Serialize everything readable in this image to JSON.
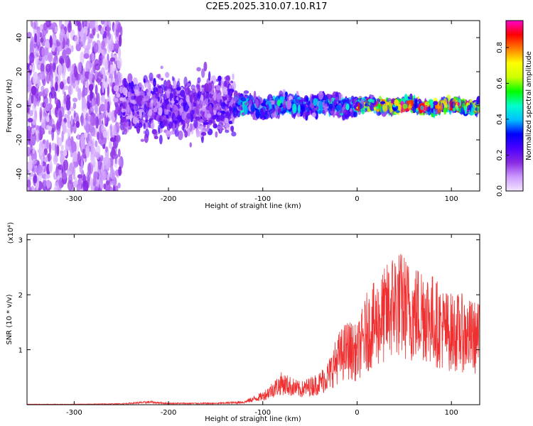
{
  "title": "C2E5.2025.310.07.10.R17",
  "chart_data": [
    {
      "type": "heatmap",
      "xlabel": "Height of straight line (km)",
      "ylabel": "Frequency (Hz)",
      "xlim": [
        -350,
        130
      ],
      "ylim": [
        -50,
        50
      ],
      "xticks": [
        -300,
        -200,
        -100,
        0,
        100
      ],
      "yticks": [
        -40,
        -20,
        0,
        20,
        40
      ],
      "colorbar": {
        "label": "Normalized spectral amplitude",
        "range": [
          0,
          0.95
        ],
        "ticks": [
          "0.0",
          "0.2",
          "0.4",
          "0.6",
          "0.8"
        ],
        "tick_values": [
          0.0,
          0.2,
          0.4,
          0.6,
          0.8
        ],
        "colors": [
          "#f2e6ff",
          "#cc99ff",
          "#8a2be2",
          "#4b00ff",
          "#0000ff",
          "#00bfff",
          "#00ffcc",
          "#00ff00",
          "#ccff00",
          "#ffff00",
          "#ff8000",
          "#ff0000",
          "#ff00cc"
        ]
      },
      "description_regions": [
        {
          "x_range": [
            -350,
            -250
          ],
          "freq_spread": 50,
          "amplitude": 0.12
        },
        {
          "x_range": [
            -250,
            -130
          ],
          "freq_spread": 15,
          "amplitude": 0.18
        },
        {
          "x_range": [
            -130,
            0
          ],
          "freq_spread": 5,
          "amplitude": 0.25
        },
        {
          "x_range": [
            0,
            130
          ],
          "freq_spread": 3,
          "amplitude": 0.45
        }
      ]
    },
    {
      "type": "line",
      "xlabel": "Height of straight line (km)",
      "ylabel": "SNR (10 * v/v)",
      "scale_label": "(x10⁴)",
      "xlim": [
        -350,
        130
      ],
      "ylim": [
        0,
        3.1
      ],
      "xticks": [
        -300,
        -200,
        -100,
        0,
        100
      ],
      "yticks": [
        1,
        2,
        3
      ],
      "color": "#f03030",
      "series": [
        {
          "name": "SNR",
          "x": [
            -350,
            -300,
            -250,
            -220,
            -200,
            -150,
            -120,
            -100,
            -80,
            -60,
            -40,
            -30,
            -20,
            -10,
            0,
            10,
            20,
            30,
            40,
            50,
            60,
            70,
            80,
            90,
            100,
            110,
            120,
            130
          ],
          "values": [
            0.01,
            0.01,
            0.02,
            0.06,
            0.03,
            0.03,
            0.06,
            0.2,
            0.5,
            0.35,
            0.5,
            0.7,
            1.1,
            1.3,
            1.2,
            1.7,
            1.9,
            2.1,
            2.4,
            2.3,
            2.1,
            2.2,
            2.0,
            1.8,
            1.7,
            1.7,
            1.6,
            1.55
          ]
        }
      ]
    }
  ]
}
